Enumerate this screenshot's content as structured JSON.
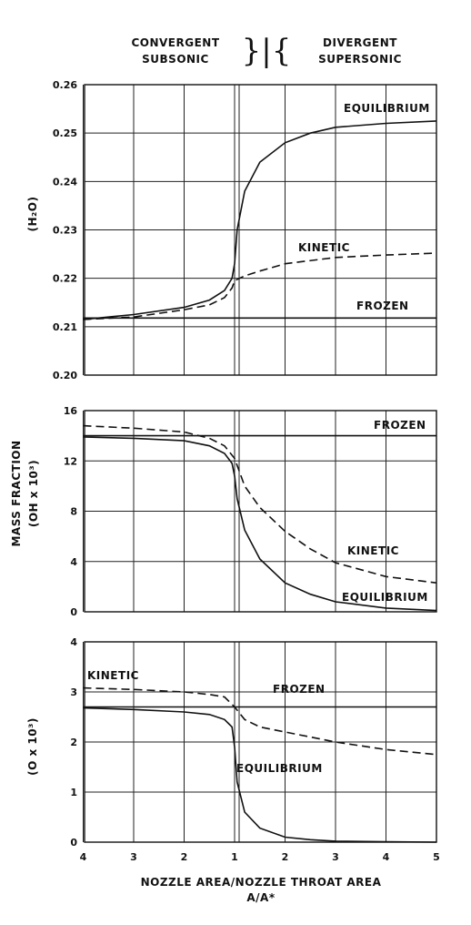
{
  "header": {
    "left_line1": "CONVERGENT",
    "left_line2": "SUBSONIC",
    "right_line1": "DIVERGENT",
    "right_line2": "SUPERSONIC",
    "divider_symbol": "}|{"
  },
  "shared_ylabel": "MASS FRACTION",
  "xlabel_line1": "NOZZLE AREA/NOZZLE THROAT AREA",
  "xlabel_line2": "A/A*",
  "chart_data": [
    {
      "type": "line",
      "ylabel": "(H₂O)",
      "ylim": [
        0.2,
        0.26
      ],
      "yticks": [
        "0.26",
        "0.25",
        "0.24",
        "0.23",
        "0.22",
        "0.21",
        "0.20"
      ],
      "x_axis": "A/A* (convergent 4→1, divergent 1→5)",
      "series": [
        {
          "name": "EQUILIBRIUM",
          "style": "solid",
          "x": [
            -3,
            -2,
            -1,
            -0.5,
            -0.2,
            -0.05,
            0,
            0.05,
            0.2,
            0.5,
            1,
            1.5,
            2,
            3,
            4
          ],
          "y": [
            0.2115,
            0.2125,
            0.214,
            0.2155,
            0.2175,
            0.22,
            0.223,
            0.23,
            0.238,
            0.244,
            0.248,
            0.25,
            0.2512,
            0.252,
            0.2525
          ]
        },
        {
          "name": "KINETIC",
          "style": "dashed",
          "x": [
            -3,
            -2,
            -1,
            -0.5,
            -0.2,
            -0.05,
            0,
            0.2,
            0.5,
            1,
            2,
            3,
            4
          ],
          "y": [
            0.2115,
            0.212,
            0.2135,
            0.2145,
            0.216,
            0.218,
            0.2195,
            0.2205,
            0.2215,
            0.223,
            0.2243,
            0.2248,
            0.2252
          ]
        },
        {
          "name": "FROZEN",
          "style": "solid",
          "x": [
            -3,
            -2,
            -1,
            0,
            1,
            2,
            3,
            4
          ],
          "y": [
            0.2118,
            0.2118,
            0.2118,
            0.2118,
            0.2118,
            0.2118,
            0.2118,
            0.2118
          ]
        }
      ]
    },
    {
      "type": "line",
      "ylabel": "(OH x 10³)",
      "ylim": [
        0,
        16
      ],
      "yticks": [
        "16",
        "12",
        "8",
        "4",
        "0"
      ],
      "x_axis": "A/A* (convergent 4→1, divergent 1→5)",
      "series": [
        {
          "name": "FROZEN",
          "style": "solid",
          "x": [
            -3,
            -2,
            -1,
            0,
            1,
            2,
            3,
            4
          ],
          "y": [
            14.0,
            14.0,
            14.0,
            14.0,
            14.0,
            14.0,
            14.0,
            14.0
          ]
        },
        {
          "name": "KINETIC",
          "style": "dashed",
          "x": [
            -3,
            -2,
            -1,
            -0.5,
            -0.2,
            0,
            0.2,
            0.5,
            1,
            1.5,
            2,
            3,
            4
          ],
          "y": [
            14.8,
            14.6,
            14.3,
            13.8,
            13.2,
            12.2,
            10.0,
            8.3,
            6.4,
            5.0,
            3.9,
            2.8,
            2.3
          ]
        },
        {
          "name": "EQUILIBRIUM",
          "style": "solid",
          "x": [
            -3,
            -2,
            -1,
            -0.5,
            -0.2,
            -0.05,
            0,
            0.05,
            0.2,
            0.5,
            1,
            1.5,
            2,
            3,
            4
          ],
          "y": [
            13.9,
            13.8,
            13.6,
            13.2,
            12.6,
            11.8,
            10.8,
            9.0,
            6.5,
            4.2,
            2.3,
            1.4,
            0.8,
            0.3,
            0.1
          ]
        }
      ]
    },
    {
      "type": "line",
      "ylabel": "(O x 10³)",
      "ylim": [
        0,
        4
      ],
      "yticks": [
        "4",
        "3",
        "2",
        "1",
        "0"
      ],
      "xticks": [
        "4",
        "3",
        "2",
        "1",
        "2",
        "3",
        "4",
        "5"
      ],
      "x_axis": "A/A* (convergent 4→1, divergent 1→5)",
      "series": [
        {
          "name": "FROZEN",
          "style": "solid",
          "x": [
            -3,
            -2,
            -1,
            0,
            1,
            2,
            3,
            4
          ],
          "y": [
            2.7,
            2.7,
            2.7,
            2.7,
            2.7,
            2.7,
            2.7,
            2.7
          ]
        },
        {
          "name": "KINETIC",
          "style": "dashed",
          "x": [
            -3,
            -2,
            -1,
            -0.5,
            -0.2,
            0,
            0.2,
            0.5,
            1,
            1.5,
            2,
            3,
            4
          ],
          "y": [
            3.08,
            3.05,
            3.0,
            2.95,
            2.9,
            2.7,
            2.45,
            2.3,
            2.2,
            2.1,
            2.0,
            1.85,
            1.75
          ]
        },
        {
          "name": "EQUILIBRIUM",
          "style": "solid",
          "x": [
            -3,
            -2,
            -1,
            -0.5,
            -0.2,
            -0.05,
            0,
            0.05,
            0.2,
            0.5,
            1,
            1.5,
            2,
            3,
            4
          ],
          "y": [
            2.68,
            2.65,
            2.6,
            2.55,
            2.45,
            2.3,
            1.9,
            1.2,
            0.6,
            0.28,
            0.1,
            0.05,
            0.02,
            0.01,
            0.0
          ]
        }
      ]
    }
  ]
}
